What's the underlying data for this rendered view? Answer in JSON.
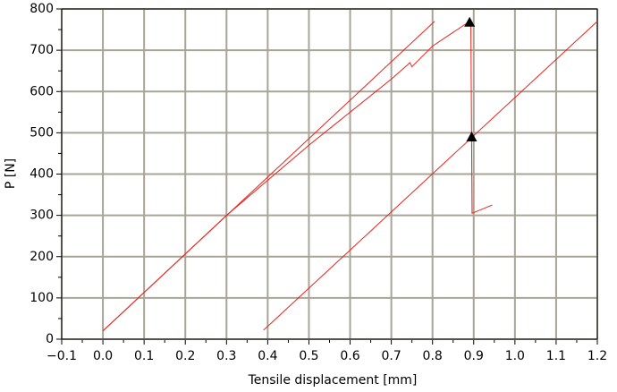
{
  "chart_data": {
    "type": "line",
    "x_label": "Tensile displacement [mm]",
    "y_label": "P [N]",
    "xlim": [
      -0.1,
      1.2
    ],
    "ylim": [
      0,
      800
    ],
    "xticks": [
      {
        "value": -0.1,
        "label": "−0.1"
      },
      {
        "value": 0,
        "label": "0.0"
      },
      0.1,
      0.2,
      0.3,
      0.4,
      0.5,
      0.6,
      0.7,
      0.8,
      0.9,
      {
        "value": 1,
        "label": "1.0"
      },
      1.1,
      1.2
    ],
    "yticks": [
      0,
      100,
      200,
      300,
      400,
      500,
      600,
      700,
      800
    ],
    "grid": true,
    "series": [
      {
        "color": "#e8231c",
        "x": [
          0,
          0.805
        ],
        "values": [
          20,
          770
        ]
      },
      {
        "color": "#e8231c",
        "x": [
          0,
          0.3,
          0.5,
          0.6,
          0.7,
          0.74,
          0.745,
          0.75,
          0.8,
          0.89,
          0.893,
          0.896,
          0.945
        ],
        "values": [
          20,
          300,
          470,
          550,
          630,
          665,
          670,
          660,
          710,
          770,
          770,
          305,
          325
        ]
      },
      {
        "color": "#e8231c",
        "x": [
          0.39,
          1.2
        ],
        "values": [
          22,
          770
        ]
      },
      {
        "color": "#000000",
        "marker": "triangle",
        "x": [
          0.89,
          0.895
        ],
        "values": [
          768,
          490
        ]
      }
    ]
  }
}
